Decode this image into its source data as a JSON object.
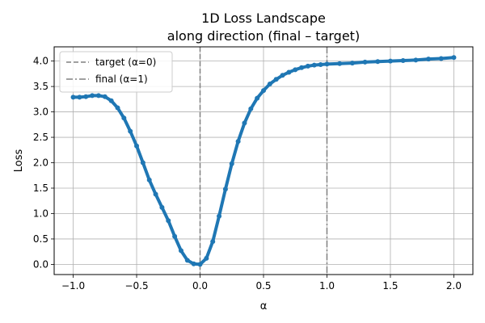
{
  "chart_data": {
    "type": "line",
    "title": "1D Loss Landscape",
    "subtitle": "along direction (final – target)",
    "xlabel": "α",
    "ylabel": "Loss",
    "xlim": [
      -1.15,
      2.15
    ],
    "ylim": [
      -0.2,
      4.28
    ],
    "grid": true,
    "legend_position": "top-left",
    "x_ticks": [
      -1.0,
      -0.5,
      0.0,
      0.5,
      1.0,
      1.5,
      2.0
    ],
    "x_tick_labels": [
      "−1.0",
      "−0.5",
      "0.0",
      "0.5",
      "1.0",
      "1.5",
      "2.0"
    ],
    "y_ticks": [
      0.0,
      0.5,
      1.0,
      1.5,
      2.0,
      2.5,
      3.0,
      3.5,
      4.0
    ],
    "y_tick_labels": [
      "0.0",
      "0.5",
      "1.0",
      "1.5",
      "2.0",
      "2.5",
      "3.0",
      "3.5",
      "4.0"
    ],
    "series": [
      {
        "color": "#1f77b4",
        "marker": "circle",
        "x": [
          -1.0,
          -0.95,
          -0.9,
          -0.85,
          -0.8,
          -0.75,
          -0.7,
          -0.65,
          -0.6,
          -0.55,
          -0.5,
          -0.45,
          -0.4,
          -0.35,
          -0.3,
          -0.25,
          -0.2,
          -0.15,
          -0.1,
          -0.05,
          0.0,
          0.05,
          0.1,
          0.15,
          0.2,
          0.25,
          0.3,
          0.35,
          0.4,
          0.45,
          0.5,
          0.55,
          0.6,
          0.65,
          0.7,
          0.75,
          0.8,
          0.85,
          0.9,
          0.95,
          1.0,
          1.1,
          1.2,
          1.3,
          1.4,
          1.5,
          1.6,
          1.7,
          1.8,
          1.9,
          2.0
        ],
        "y": [
          3.29,
          3.29,
          3.3,
          3.32,
          3.32,
          3.3,
          3.22,
          3.08,
          2.88,
          2.62,
          2.33,
          2.0,
          1.66,
          1.38,
          1.12,
          0.86,
          0.55,
          0.27,
          0.08,
          0.01,
          0.0,
          0.12,
          0.45,
          0.95,
          1.48,
          1.98,
          2.42,
          2.78,
          3.06,
          3.27,
          3.42,
          3.55,
          3.64,
          3.72,
          3.78,
          3.83,
          3.87,
          3.9,
          3.92,
          3.93,
          3.94,
          3.95,
          3.96,
          3.98,
          3.99,
          4.0,
          4.01,
          4.02,
          4.04,
          4.05,
          4.07
        ]
      }
    ],
    "vlines": [
      {
        "x": 0.0,
        "label": "target (α=0)",
        "style": "dashed",
        "color": "#808080"
      },
      {
        "x": 1.0,
        "label": "final  (α=1)",
        "style": "dashdot",
        "color": "#808080"
      }
    ]
  }
}
